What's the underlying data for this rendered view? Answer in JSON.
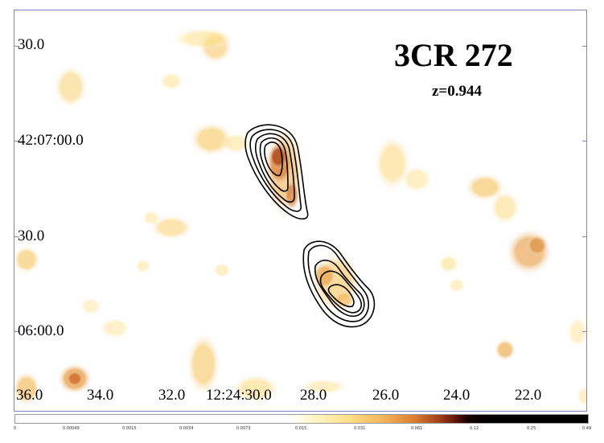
{
  "title": "3CR 272",
  "subtitle": "z=0.944",
  "dec_ticks": [
    "30.0",
    "42:07:00.0",
    "30.0",
    "06:00.0"
  ],
  "ra_ticks": [
    "36.0",
    "34.0",
    "32.0",
    "12:24:30.0",
    "28.0",
    "26.0",
    "24.0",
    "22.0"
  ],
  "colorbar": {
    "labels": [
      "0",
      "0.00049",
      "0.0015",
      "0.0034",
      "0.0073",
      "0.015",
      "0.031",
      "0.061",
      "0.12",
      "0.25",
      "0.49"
    ]
  },
  "colors": {
    "frame": "#7f86c8",
    "emission_low": "#fde08a",
    "emission_mid": "#e8a048",
    "emission_high": "#a2401a",
    "contour": "#000000"
  }
}
